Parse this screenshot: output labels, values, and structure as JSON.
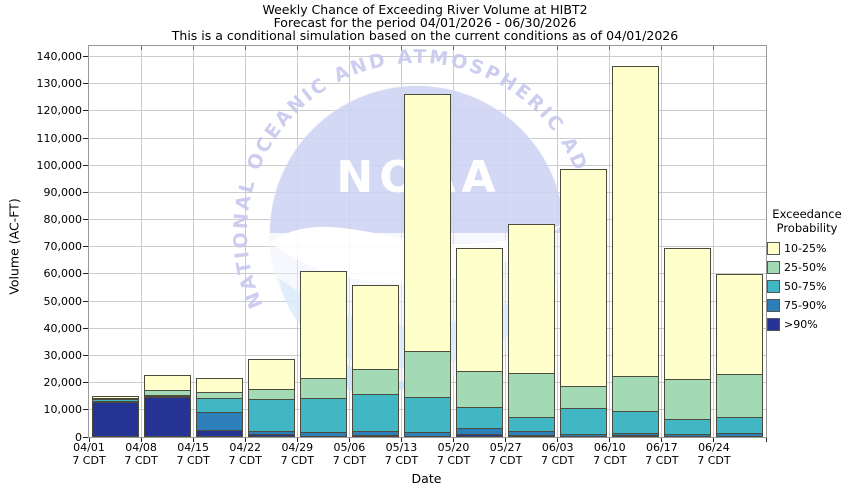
{
  "titles": {
    "line1": "Weekly Chance of Exceeding River Volume at HIBT2",
    "line2": "Forecast for the period 04/01/2026 - 06/30/2026",
    "line3": "This is a conditional simulation based on the current conditions as of 04/01/2026"
  },
  "axes": {
    "y_title": "Volume (AC-FT)",
    "x_title": "Date",
    "x_sublabel": "7 CDT"
  },
  "legend": {
    "title_line1": "Exceedance",
    "title_line2": "Probability",
    "items": [
      {
        "label": "10-25%",
        "color": "#ffffcc"
      },
      {
        "label": "25-50%",
        "color": "#a1dab4"
      },
      {
        "label": "50-75%",
        "color": "#41b6c4"
      },
      {
        "label": "75-90%",
        "color": "#2c7fb8"
      },
      {
        "label": ">90%",
        "color": "#253494"
      }
    ]
  },
  "watermark": {
    "arc_text": "NATIONAL OCEANIC AND ATMOSPHERIC ADMINISTRATION",
    "logo_text": "NOAA"
  },
  "colors": {
    "grid": "#cbcbcb",
    "frame": "#999999",
    "bar_border": "#4c4c3e",
    "watermark_text": "#c7c7ee",
    "watermark_dome": "#ced4f4",
    "watermark_wave": "#dcebfb"
  },
  "chart_data": {
    "type": "bar",
    "stacked": true,
    "stack_order": "bottom-to-top",
    "title": "Weekly Chance of Exceeding River Volume at HIBT2",
    "xlabel": "Date",
    "ylabel": "Volume (AC-FT)",
    "ylim": [
      0,
      140000
    ],
    "ytick_step": 10000,
    "grid": true,
    "legend_position": "right",
    "categories": [
      "04/01",
      "04/08",
      "04/15",
      "04/22",
      "04/29",
      "05/06",
      "05/13",
      "05/20",
      "05/27",
      "06/03",
      "06/10",
      "06/17",
      "06/24"
    ],
    "category_sublabel": "7 CDT",
    "series": [
      {
        "name": ">90%",
        "color": "#253494",
        "values": [
          13000,
          14800,
          2600,
          1100,
          400,
          700,
          400,
          1000,
          700,
          400,
          600,
          300,
          400
        ]
      },
      {
        "name": "75-90%",
        "color": "#2c7fb8",
        "values": [
          400,
          300,
          6700,
          1200,
          1500,
          1600,
          1500,
          2400,
          1600,
          700,
          1000,
          700,
          1200
        ]
      },
      {
        "name": "50-75%",
        "color": "#41b6c4",
        "values": [
          400,
          300,
          5200,
          11600,
          12600,
          13500,
          12900,
          7700,
          5000,
          9700,
          8100,
          5600,
          5600
        ]
      },
      {
        "name": "25-50%",
        "color": "#a1dab4",
        "values": [
          400,
          1900,
          2000,
          3600,
          7100,
          9100,
          16800,
          13200,
          16200,
          7900,
          12800,
          14600,
          16000
        ]
      },
      {
        "name": "10-25%",
        "color": "#ffffcc",
        "values": [
          900,
          5400,
          5100,
          11100,
          39400,
          31000,
          94700,
          45400,
          55000,
          79800,
          113900,
          48400,
          36600
        ]
      }
    ],
    "totals": [
      15100,
      22700,
      21600,
      28600,
      61000,
      55900,
      126300,
      69700,
      78500,
      98500,
      136400,
      69600,
      59800
    ]
  }
}
